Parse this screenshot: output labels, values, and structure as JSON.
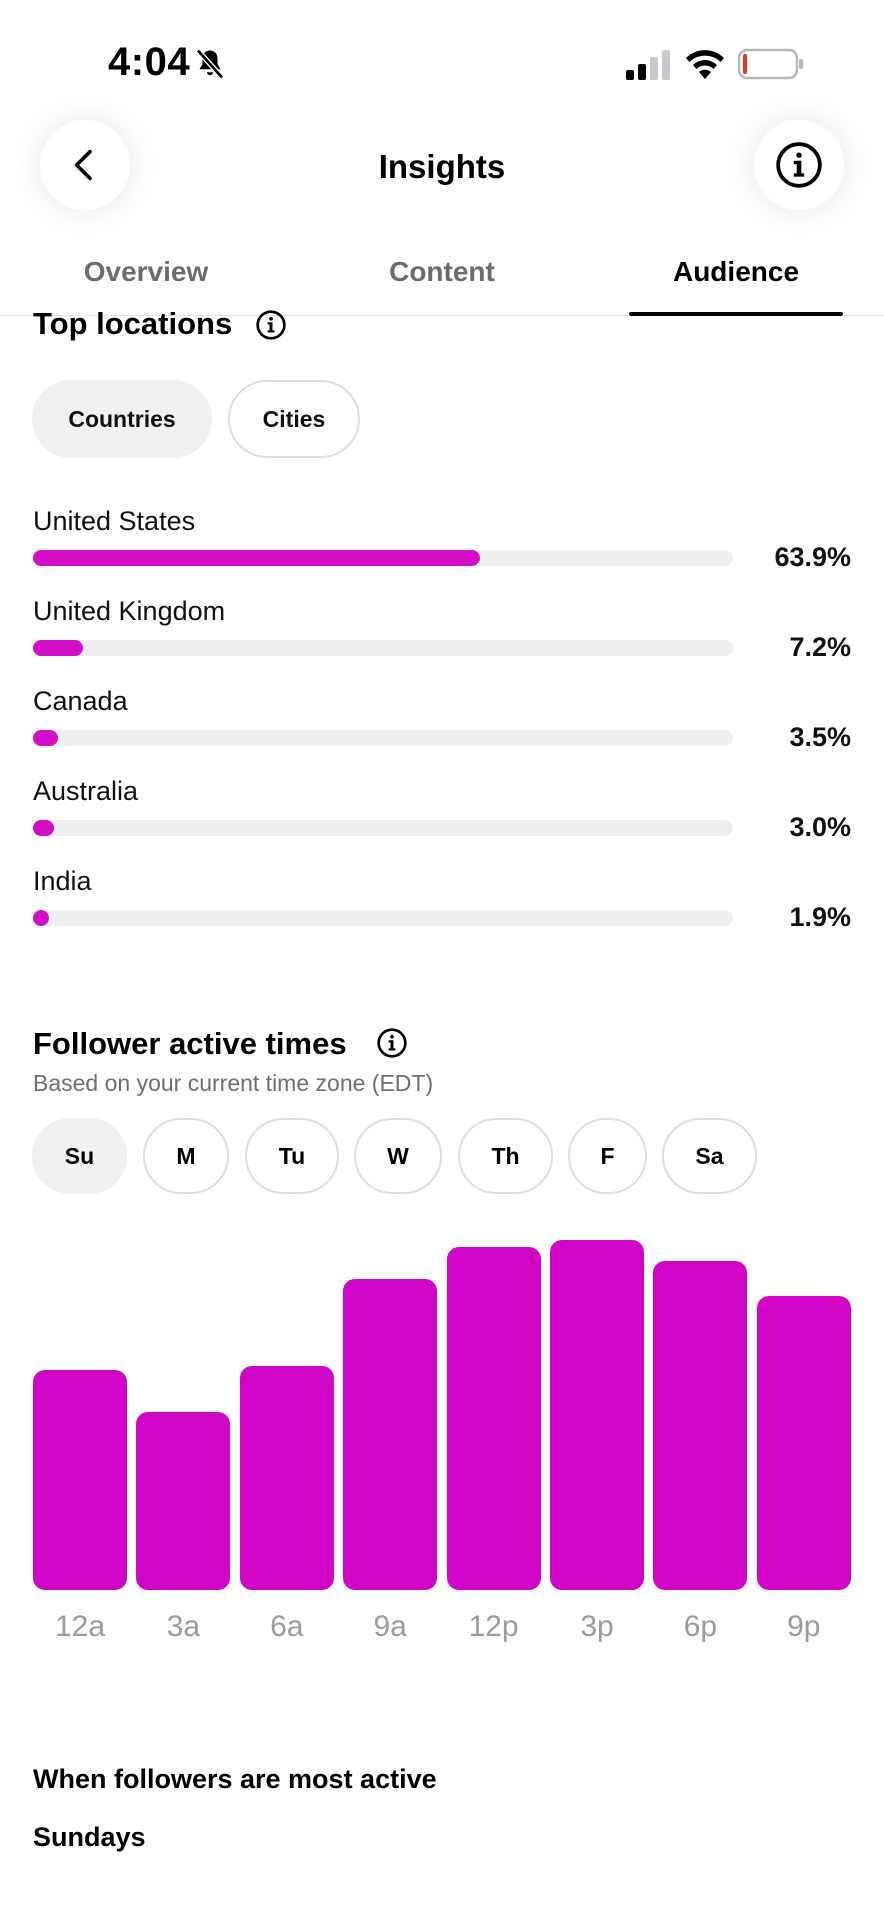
{
  "status_bar": {
    "time": "4:04",
    "icons": [
      "bell-slash-icon",
      "cellular-signal-icon",
      "wifi-icon",
      "battery-low-icon"
    ]
  },
  "header": {
    "title": "Insights",
    "back_icon": "chevron-left-icon",
    "info_icon": "info-icon"
  },
  "tabs": [
    {
      "label": "Overview",
      "active": false
    },
    {
      "label": "Content",
      "active": false
    },
    {
      "label": "Audience",
      "active": true
    }
  ],
  "top_locations": {
    "title": "Top locations",
    "filters": [
      {
        "label": "Countries",
        "selected": true
      },
      {
        "label": "Cities",
        "selected": false
      }
    ],
    "items": [
      {
        "name": "United States",
        "percent_label": "63.9%",
        "percent": 63.9
      },
      {
        "name": "United Kingdom",
        "percent_label": "7.2%",
        "percent": 7.2
      },
      {
        "name": "Canada",
        "percent_label": "3.5%",
        "percent": 3.5
      },
      {
        "name": "Australia",
        "percent_label": "3.0%",
        "percent": 3.0
      },
      {
        "name": "India",
        "percent_label": "1.9%",
        "percent": 1.9
      }
    ],
    "bar_color": "#d20fc7"
  },
  "active_times": {
    "title": "Follower active times",
    "subtitle": "Based on your current time zone (EDT)",
    "days": [
      {
        "label": "Su",
        "selected": true
      },
      {
        "label": "M",
        "selected": false
      },
      {
        "label": "Tu",
        "selected": false
      },
      {
        "label": "W",
        "selected": false
      },
      {
        "label": "Th",
        "selected": false
      },
      {
        "label": "F",
        "selected": false
      },
      {
        "label": "Sa",
        "selected": false
      }
    ],
    "most_active_label": "When followers are most active",
    "most_active_value": "Sundays"
  },
  "chart_data": {
    "type": "bar",
    "categories": [
      "12a",
      "3a",
      "6a",
      "9a",
      "12p",
      "3p",
      "6p",
      "9p"
    ],
    "values": [
      63,
      51,
      64,
      89,
      98,
      100,
      94,
      84
    ],
    "ylim": [
      0,
      100
    ],
    "color": "#d005c5",
    "grid": false
  }
}
